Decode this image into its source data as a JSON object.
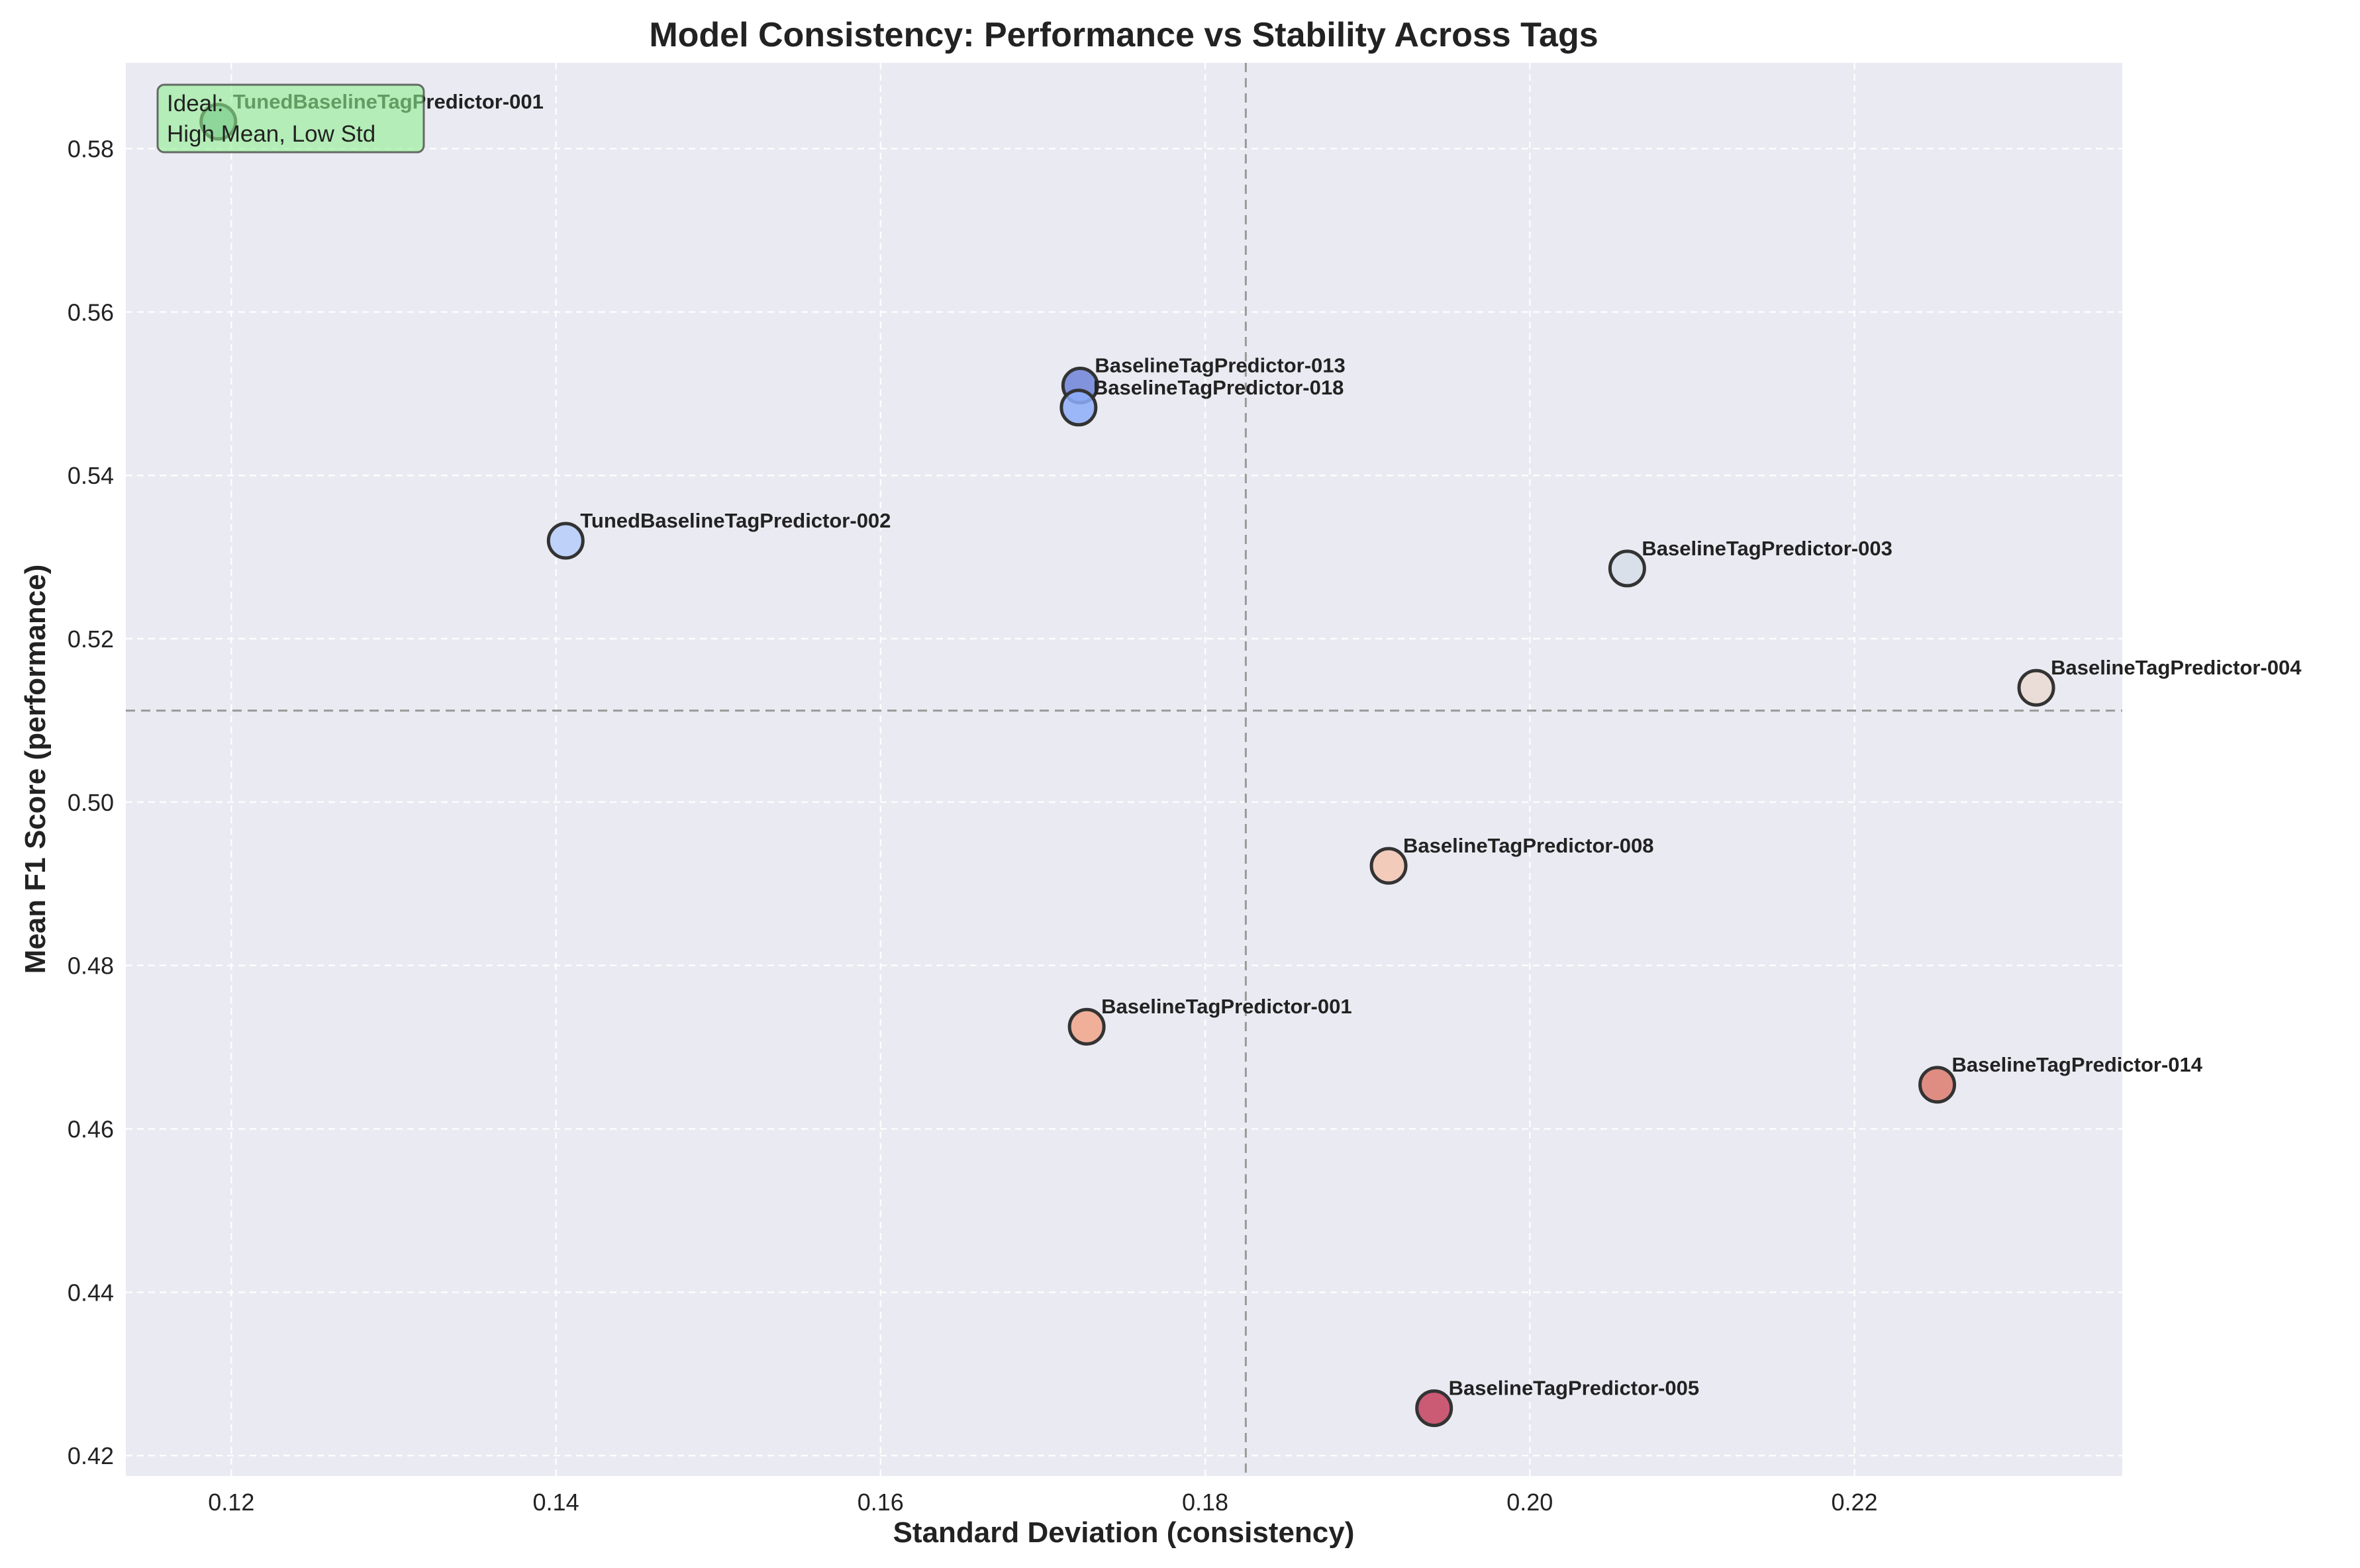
{
  "chart_data": {
    "type": "scatter",
    "title": "Model Consistency: Performance vs Stability Across Tags",
    "xlabel": "Standard Deviation (consistency)",
    "ylabel": "Mean F1 Score (performance)",
    "xlim": [
      0.1135,
      0.2365
    ],
    "ylim": [
      0.4175,
      0.5905
    ],
    "xticks": [
      0.12,
      0.14,
      0.16,
      0.18,
      0.2,
      0.22
    ],
    "xtick_labels": [
      "0.12",
      "0.14",
      "0.16",
      "0.18",
      "0.20",
      "0.22"
    ],
    "yticks": [
      0.42,
      0.44,
      0.46,
      0.48,
      0.5,
      0.52,
      0.54,
      0.56,
      0.58
    ],
    "ytick_labels": [
      "0.42",
      "0.44",
      "0.46",
      "0.48",
      "0.50",
      "0.52",
      "0.54",
      "0.56",
      "0.58"
    ],
    "grid": true,
    "reference_lines": {
      "x_mean": 0.1825,
      "y_mean": 0.5112
    },
    "annotation": {
      "line1": "Ideal:",
      "line2": "High Mean, Low Std",
      "position": "top-left"
    },
    "points": [
      {
        "label": "TunedBaselineTagPredictor-001",
        "x": 0.1192,
        "y": 0.5833,
        "color": "#7bab9e"
      },
      {
        "label": "BaselineTagPredictor-013",
        "x": 0.1723,
        "y": 0.551,
        "color": "#6d84d8"
      },
      {
        "label": "BaselineTagPredictor-018",
        "x": 0.1722,
        "y": 0.5483,
        "color": "#8daef9"
      },
      {
        "label": "TunedBaselineTagPredictor-002",
        "x": 0.1406,
        "y": 0.532,
        "color": "#b5cdfa"
      },
      {
        "label": "BaselineTagPredictor-003",
        "x": 0.206,
        "y": 0.5286,
        "color": "#d7dee9"
      },
      {
        "label": "BaselineTagPredictor-004",
        "x": 0.2312,
        "y": 0.514,
        "color": "#ead9d1"
      },
      {
        "label": "BaselineTagPredictor-008",
        "x": 0.1913,
        "y": 0.4922,
        "color": "#f3c6b1"
      },
      {
        "label": "BaselineTagPredictor-001",
        "x": 0.1727,
        "y": 0.4725,
        "color": "#f1a58a"
      },
      {
        "label": "BaselineTagPredictor-014",
        "x": 0.2251,
        "y": 0.4654,
        "color": "#dd7c70"
      },
      {
        "label": "BaselineTagPredictor-005",
        "x": 0.1941,
        "y": 0.4258,
        "color": "#c5415e"
      }
    ]
  }
}
